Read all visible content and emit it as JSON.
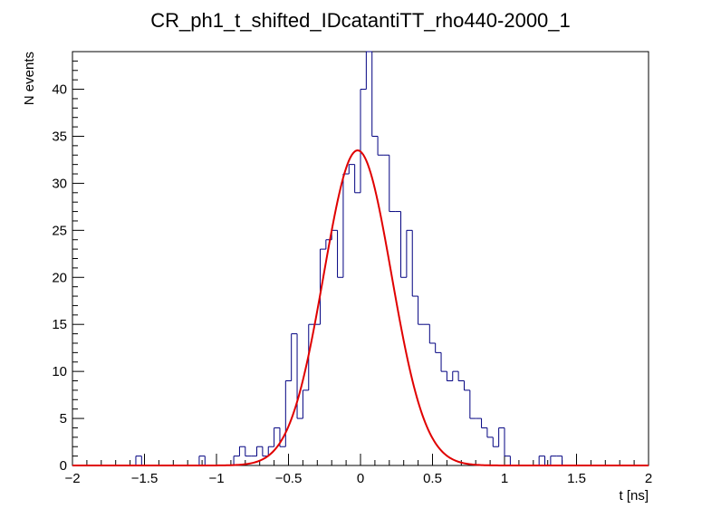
{
  "chart_data": {
    "type": "histogram",
    "title": "CR_ph1_t_shifted_IDcatantiTT_rho440-2000_1",
    "xlabel": "t [ns]",
    "ylabel": "N events",
    "xlim": [
      -2,
      2
    ],
    "ylim": [
      0,
      44
    ],
    "grid": false,
    "x_ticks": [
      -2,
      -1.5,
      -1,
      -0.5,
      0,
      0.5,
      1,
      1.5,
      2
    ],
    "x_tick_labels": [
      "−2",
      "−1.5",
      "−1",
      "−0.5",
      "0",
      "0.5",
      "1",
      "1.5",
      "2"
    ],
    "y_ticks": [
      0,
      5,
      10,
      15,
      20,
      25,
      30,
      35,
      40
    ],
    "y_tick_labels": [
      "0",
      "5",
      "10",
      "15",
      "20",
      "25",
      "30",
      "35",
      "40"
    ],
    "bin_width": 0.04,
    "series": [
      {
        "kind": "histogram",
        "color": "#000080",
        "bins": [
          {
            "x0": -1.56,
            "count": 1
          },
          {
            "x0": -1.12,
            "count": 1
          },
          {
            "x0": -0.88,
            "count": 1
          },
          {
            "x0": -0.84,
            "count": 2
          },
          {
            "x0": -0.8,
            "count": 1
          },
          {
            "x0": -0.76,
            "count": 1
          },
          {
            "x0": -0.72,
            "count": 2
          },
          {
            "x0": -0.68,
            "count": 1
          },
          {
            "x0": -0.64,
            "count": 2
          },
          {
            "x0": -0.6,
            "count": 4
          },
          {
            "x0": -0.56,
            "count": 2
          },
          {
            "x0": -0.52,
            "count": 9
          },
          {
            "x0": -0.48,
            "count": 14
          },
          {
            "x0": -0.44,
            "count": 5
          },
          {
            "x0": -0.4,
            "count": 8
          },
          {
            "x0": -0.36,
            "count": 15
          },
          {
            "x0": -0.32,
            "count": 15
          },
          {
            "x0": -0.28,
            "count": 23
          },
          {
            "x0": -0.24,
            "count": 24
          },
          {
            "x0": -0.2,
            "count": 25
          },
          {
            "x0": -0.16,
            "count": 20
          },
          {
            "x0": -0.12,
            "count": 31
          },
          {
            "x0": -0.08,
            "count": 32
          },
          {
            "x0": -0.04,
            "count": 29
          },
          {
            "x0": 0.0,
            "count": 40
          },
          {
            "x0": 0.04,
            "count": 46
          },
          {
            "x0": 0.08,
            "count": 35
          },
          {
            "x0": 0.12,
            "count": 33
          },
          {
            "x0": 0.16,
            "count": 33
          },
          {
            "x0": 0.2,
            "count": 27
          },
          {
            "x0": 0.24,
            "count": 27
          },
          {
            "x0": 0.28,
            "count": 20
          },
          {
            "x0": 0.32,
            "count": 25
          },
          {
            "x0": 0.36,
            "count": 18
          },
          {
            "x0": 0.4,
            "count": 15
          },
          {
            "x0": 0.44,
            "count": 15
          },
          {
            "x0": 0.48,
            "count": 13
          },
          {
            "x0": 0.52,
            "count": 12
          },
          {
            "x0": 0.56,
            "count": 10
          },
          {
            "x0": 0.6,
            "count": 9
          },
          {
            "x0": 0.64,
            "count": 10
          },
          {
            "x0": 0.68,
            "count": 9
          },
          {
            "x0": 0.72,
            "count": 8
          },
          {
            "x0": 0.76,
            "count": 5
          },
          {
            "x0": 0.8,
            "count": 5
          },
          {
            "x0": 0.84,
            "count": 4
          },
          {
            "x0": 0.88,
            "count": 3
          },
          {
            "x0": 0.92,
            "count": 2
          },
          {
            "x0": 0.96,
            "count": 4
          },
          {
            "x0": 1.0,
            "count": 1
          },
          {
            "x0": 1.24,
            "count": 1
          },
          {
            "x0": 1.32,
            "count": 1
          },
          {
            "x0": 1.36,
            "count": 1
          }
        ]
      },
      {
        "kind": "gaussian_fit",
        "color": "#e00000",
        "amplitude": 33.5,
        "mean": -0.02,
        "sigma": 0.235
      }
    ]
  }
}
